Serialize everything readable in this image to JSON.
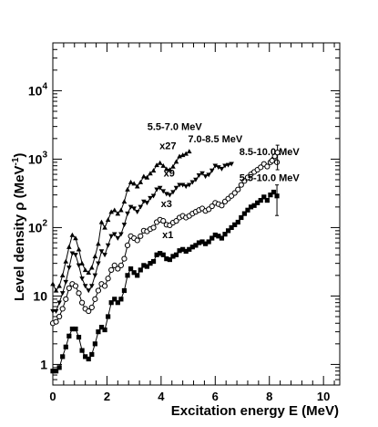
{
  "chart_data": {
    "type": "line",
    "xlabel": "Excitation energy E (MeV)",
    "ylabel": "Level density ρ (MeV",
    "ylabel_sup": "-1",
    "ylabel_close": ")",
    "xlim": [
      0,
      10.6
    ],
    "ylim": [
      0.5,
      50000
    ],
    "yscale": "log",
    "x_ticks": [
      0,
      2,
      4,
      6,
      8,
      10
    ],
    "x_tick_labels": [
      "0",
      "2",
      "4",
      "6",
      "8",
      "10"
    ],
    "y_ticks": [
      1,
      10,
      100,
      1000,
      10000
    ],
    "y_tick_labels": [
      {
        "base": "1",
        "exp": ""
      },
      {
        "base": "10",
        "exp": ""
      },
      {
        "base": "10",
        "exp": "2"
      },
      {
        "base": "10",
        "exp": "3"
      },
      {
        "base": "10",
        "exp": "4"
      }
    ],
    "grid": false,
    "annotations": [
      {
        "text": "5.5-7.0 MeV",
        "x": 4.5,
        "y": 2650
      },
      {
        "text": "x27",
        "x": 4.25,
        "y": 1400
      },
      {
        "text": "7.0-8.5 MeV",
        "x": 6.0,
        "y": 1750
      },
      {
        "text": "x9",
        "x": 4.3,
        "y": 560
      },
      {
        "text": "8.5-10.0 MeV",
        "x": 8.0,
        "y": 1150
      },
      {
        "text": "5.5-10.0 MeV",
        "x": 8.0,
        "y": 480
      },
      {
        "text": "x3",
        "x": 4.2,
        "y": 200
      },
      {
        "text": "x1",
        "x": 4.25,
        "y": 70
      }
    ],
    "series": [
      {
        "marker": "square-filled",
        "x": [
          0.0,
          0.12,
          0.24,
          0.36,
          0.48,
          0.6,
          0.72,
          0.84,
          0.96,
          1.08,
          1.2,
          1.32,
          1.44,
          1.56,
          1.68,
          1.8,
          1.92,
          2.04,
          2.16,
          2.28,
          2.4,
          2.52,
          2.64,
          2.76,
          2.88,
          3.0,
          3.12,
          3.24,
          3.36,
          3.48,
          3.6,
          3.72,
          3.84,
          3.96,
          4.08,
          4.2,
          4.32,
          4.44,
          4.56,
          4.68,
          4.8,
          4.92,
          5.04,
          5.16,
          5.28,
          5.4,
          5.52,
          5.64,
          5.76,
          5.88,
          6.0,
          6.12,
          6.24,
          6.36,
          6.48,
          6.6,
          6.72,
          6.84,
          6.96,
          7.08,
          7.2,
          7.32,
          7.44,
          7.56,
          7.68,
          7.8,
          7.92,
          8.04,
          8.16,
          8.28
        ],
        "y": [
          0.8,
          0.8,
          0.9,
          1.3,
          1.8,
          2.6,
          3.3,
          3.3,
          2.5,
          1.6,
          1.3,
          1.2,
          1.4,
          2.0,
          3.0,
          3.5,
          3.2,
          5.0,
          8.0,
          9.0,
          8.0,
          9.0,
          12,
          20,
          25,
          22,
          20,
          24,
          28,
          27,
          30,
          32,
          40,
          42,
          40,
          35,
          34,
          38,
          40,
          46,
          48,
          45,
          48,
          52,
          55,
          60,
          62,
          58,
          62,
          70,
          78,
          75,
          70,
          80,
          90,
          100,
          110,
          120,
          140,
          160,
          180,
          200,
          210,
          230,
          250,
          280,
          250,
          300,
          330,
          290
        ],
        "errors": [
          [
            8.28,
            150,
            420
          ]
        ]
      },
      {
        "marker": "circle-open",
        "x": [
          0.0,
          0.12,
          0.24,
          0.36,
          0.48,
          0.6,
          0.72,
          0.84,
          0.96,
          1.08,
          1.2,
          1.32,
          1.44,
          1.56,
          1.68,
          1.8,
          1.92,
          2.04,
          2.16,
          2.28,
          2.4,
          2.52,
          2.64,
          2.76,
          2.88,
          3.0,
          3.12,
          3.24,
          3.36,
          3.48,
          3.6,
          3.72,
          3.84,
          3.96,
          4.08,
          4.2,
          4.32,
          4.44,
          4.56,
          4.68,
          4.8,
          4.92,
          5.04,
          5.16,
          5.28,
          5.4,
          5.52,
          5.64,
          5.76,
          5.88,
          6.0,
          6.12,
          6.24,
          6.36,
          6.48,
          6.6,
          6.72,
          6.84,
          6.96,
          7.08,
          7.2,
          7.32,
          7.44,
          7.56,
          7.68,
          7.8,
          7.92,
          8.04,
          8.16,
          8.28
        ],
        "y": [
          4.0,
          4.2,
          5.0,
          6.5,
          9.0,
          13,
          15,
          14,
          11,
          8,
          6.5,
          6,
          6.8,
          9,
          12,
          15,
          14,
          18,
          24,
          28,
          25,
          28,
          35,
          55,
          75,
          70,
          65,
          75,
          90,
          88,
          95,
          100,
          120,
          130,
          125,
          110,
          108,
          118,
          125,
          140,
          148,
          140,
          148,
          160,
          170,
          180,
          190,
          175,
          185,
          205,
          230,
          220,
          210,
          240,
          265,
          290,
          320,
          360,
          420,
          480,
          540,
          600,
          650,
          700,
          760,
          850,
          780,
          900,
          1000,
          900
        ]
      },
      {
        "marker": "triangle-down-filled",
        "x": [
          0.0,
          0.12,
          0.24,
          0.36,
          0.48,
          0.6,
          0.72,
          0.84,
          0.96,
          1.08,
          1.2,
          1.32,
          1.44,
          1.56,
          1.68,
          1.8,
          1.92,
          2.04,
          2.16,
          2.28,
          2.4,
          2.52,
          2.64,
          2.76,
          2.88,
          3.0,
          3.12,
          3.24,
          3.36,
          3.48,
          3.6,
          3.72,
          3.84,
          3.96,
          4.08,
          4.2,
          4.32,
          4.44,
          4.56,
          4.68,
          4.8,
          4.92,
          5.04,
          5.16,
          5.28,
          5.4,
          5.52,
          5.64,
          5.76,
          5.88,
          6.0,
          6.12,
          6.24,
          6.36,
          6.48,
          6.6
        ],
        "y": [
          6,
          6,
          8,
          11,
          16,
          26,
          42,
          40,
          28,
          18,
          14,
          12,
          14,
          20,
          30,
          45,
          40,
          55,
          75,
          80,
          70,
          80,
          110,
          160,
          200,
          190,
          170,
          200,
          240,
          230,
          270,
          290,
          360,
          380,
          340,
          310,
          300,
          330,
          380,
          420,
          420,
          400,
          420,
          460,
          500,
          580,
          620,
          560,
          590,
          680,
          800,
          760,
          720,
          800,
          820,
          850
        ]
      },
      {
        "marker": "triangle-up-filled",
        "x": [
          0.0,
          0.12,
          0.24,
          0.36,
          0.48,
          0.6,
          0.72,
          0.84,
          0.96,
          1.08,
          1.2,
          1.32,
          1.44,
          1.56,
          1.68,
          1.8,
          1.92,
          2.04,
          2.16,
          2.28,
          2.4,
          2.52,
          2.64,
          2.76,
          2.88,
          3.0,
          3.12,
          3.24,
          3.36,
          3.48,
          3.6,
          3.72,
          3.84,
          3.96,
          4.08,
          4.2,
          4.32,
          4.44,
          4.56,
          4.68,
          4.8,
          4.92,
          5.04
        ],
        "y": [
          15,
          12,
          14,
          20,
          32,
          52,
          78,
          70,
          48,
          30,
          24,
          22,
          26,
          38,
          58,
          120,
          100,
          130,
          170,
          180,
          160,
          180,
          240,
          360,
          460,
          440,
          400,
          460,
          560,
          540,
          620,
          680,
          820,
          880,
          800,
          720,
          700,
          780,
          920,
          1100,
          1150,
          1200,
          1300
        ]
      },
      {
        "marker": "circle-open",
        "x": [
          8.1,
          8.2,
          8.3
        ],
        "y": [
          950,
          1100,
          1250
        ],
        "errors": [
          [
            8.3,
            700,
            1600
          ]
        ]
      }
    ]
  }
}
